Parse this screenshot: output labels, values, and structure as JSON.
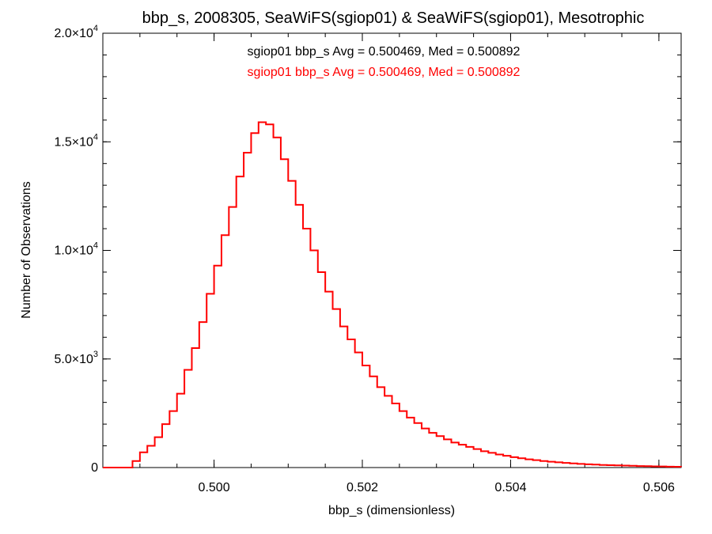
{
  "chart_data": {
    "type": "line",
    "title": "bbp_s, 2008305, SeaWiFS(sgiop01) & SeaWiFS(sgiop01), Mesotrophic",
    "xlabel": "bbp_s (dimensionless)",
    "ylabel": "Number of Observations",
    "xlim": [
      0.4985,
      0.5063
    ],
    "ylim": [
      0,
      20000
    ],
    "x_ticks": [
      "0.500",
      "0.502",
      "0.504",
      "0.506"
    ],
    "x_tick_values": [
      0.5,
      0.502,
      0.504,
      0.506
    ],
    "y_ticks": [
      {
        "value": 0,
        "mantissa": "0",
        "exponent": ""
      },
      {
        "value": 5000,
        "mantissa": "5.0×10",
        "exponent": "3"
      },
      {
        "value": 10000,
        "mantissa": "1.0×10",
        "exponent": "4"
      },
      {
        "value": 15000,
        "mantissa": "1.5×10",
        "exponent": "4"
      },
      {
        "value": 20000,
        "mantissa": "2.0×10",
        "exponent": "4"
      }
    ],
    "annotations": [
      {
        "text": "sgiop01 bbp_s Avg = 0.500469, Med = 0.500892",
        "color": "#000000"
      },
      {
        "text": "sgiop01 bbp_s Avg = 0.500469, Med = 0.500892",
        "color": "#ff0000"
      }
    ],
    "grid": false,
    "series": [
      {
        "color": "#ff0000",
        "step": true,
        "points": [
          [
            0.4988,
            0
          ],
          [
            0.4989,
            300
          ],
          [
            0.499,
            700
          ],
          [
            0.4991,
            1000
          ],
          [
            0.4992,
            1400
          ],
          [
            0.4993,
            2000
          ],
          [
            0.4994,
            2600
          ],
          [
            0.4995,
            3400
          ],
          [
            0.4996,
            4500
          ],
          [
            0.4997,
            5500
          ],
          [
            0.4998,
            6700
          ],
          [
            0.4999,
            8000
          ],
          [
            0.5,
            9300
          ],
          [
            0.5001,
            10700
          ],
          [
            0.5002,
            12000
          ],
          [
            0.5003,
            13400
          ],
          [
            0.5004,
            14500
          ],
          [
            0.5005,
            15400
          ],
          [
            0.5006,
            15900
          ],
          [
            0.5007,
            15800
          ],
          [
            0.5008,
            15200
          ],
          [
            0.5009,
            14200
          ],
          [
            0.501,
            13200
          ],
          [
            0.5011,
            12100
          ],
          [
            0.5012,
            11000
          ],
          [
            0.5013,
            10000
          ],
          [
            0.5014,
            9000
          ],
          [
            0.5015,
            8100
          ],
          [
            0.5016,
            7300
          ],
          [
            0.5017,
            6500
          ],
          [
            0.5018,
            5900
          ],
          [
            0.5019,
            5300
          ],
          [
            0.502,
            4700
          ],
          [
            0.5021,
            4200
          ],
          [
            0.5022,
            3700
          ],
          [
            0.5023,
            3300
          ],
          [
            0.5024,
            2950
          ],
          [
            0.5025,
            2600
          ],
          [
            0.5026,
            2300
          ],
          [
            0.5027,
            2050
          ],
          [
            0.5028,
            1800
          ],
          [
            0.5029,
            1600
          ],
          [
            0.503,
            1450
          ],
          [
            0.5031,
            1300
          ],
          [
            0.5032,
            1150
          ],
          [
            0.5033,
            1050
          ],
          [
            0.5034,
            950
          ],
          [
            0.5035,
            850
          ],
          [
            0.5036,
            750
          ],
          [
            0.5037,
            680
          ],
          [
            0.5038,
            600
          ],
          [
            0.5039,
            540
          ],
          [
            0.504,
            480
          ],
          [
            0.5041,
            430
          ],
          [
            0.5042,
            380
          ],
          [
            0.5043,
            340
          ],
          [
            0.5044,
            300
          ],
          [
            0.5045,
            270
          ],
          [
            0.5046,
            240
          ],
          [
            0.5047,
            215
          ],
          [
            0.5048,
            190
          ],
          [
            0.5049,
            170
          ],
          [
            0.505,
            150
          ],
          [
            0.5051,
            135
          ],
          [
            0.5052,
            120
          ],
          [
            0.5053,
            110
          ],
          [
            0.5054,
            100
          ],
          [
            0.5055,
            90
          ],
          [
            0.5056,
            80
          ],
          [
            0.5057,
            70
          ],
          [
            0.5058,
            62
          ],
          [
            0.5059,
            55
          ],
          [
            0.506,
            48
          ],
          [
            0.5061,
            40
          ],
          [
            0.5062,
            35
          ],
          [
            0.5063,
            30
          ]
        ]
      }
    ]
  }
}
